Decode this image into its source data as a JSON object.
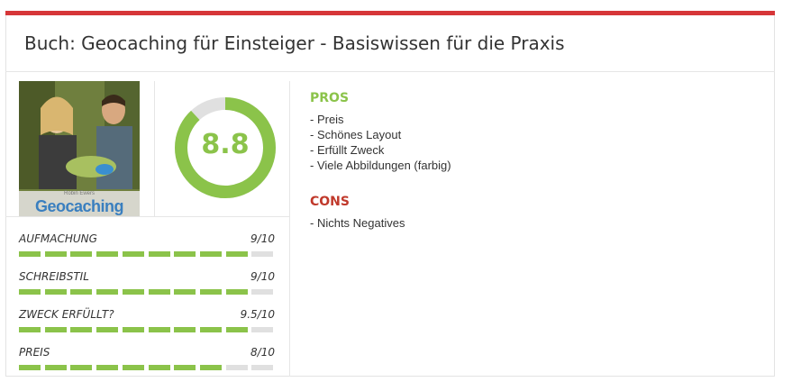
{
  "review": {
    "title": "Buch: Geocaching für Einsteiger - Basiswissen für die Praxis",
    "cover": {
      "author": "Robin Ewers",
      "name": "Geocaching"
    },
    "score": 8.8,
    "score_max": 10,
    "criteria": [
      {
        "label": "AUFMACHUNG",
        "score": "9/10",
        "value": 9
      },
      {
        "label": "SCHREIBSTIL",
        "score": "9/10",
        "value": 9
      },
      {
        "label": "ZWECK ERFÜLLT?",
        "score": "9.5/10",
        "value": 9.5
      },
      {
        "label": "PREIS",
        "score": "8/10",
        "value": 8
      }
    ],
    "pros_title": "PROS",
    "pros": [
      "- Preis",
      "- Schönes Layout",
      "- Erfüllt Zweck",
      "- Viele Abbildungen (farbig)"
    ],
    "cons_title": "CONS",
    "cons": [
      "- Nichts Negatives"
    ]
  },
  "colors": {
    "accent": "#d63638",
    "good": "#8bc34a",
    "bad": "#c0392b",
    "empty": "#e0e0e0"
  }
}
